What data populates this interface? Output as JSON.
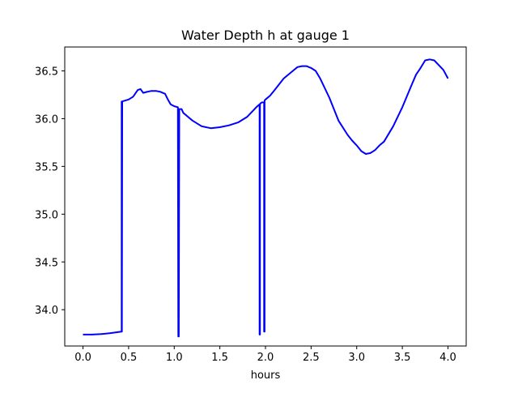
{
  "chart_data": {
    "type": "line",
    "title": "Water Depth h at gauge 1",
    "xlabel": "hours",
    "ylabel": "",
    "xlim": [
      -0.2,
      4.2
    ],
    "ylim": [
      33.62,
      36.75
    ],
    "xticks": [
      0.0,
      0.5,
      1.0,
      1.5,
      2.0,
      2.5,
      3.0,
      3.5,
      4.0
    ],
    "xtick_labels": [
      "0.0",
      "0.5",
      "1.0",
      "1.5",
      "2.0",
      "2.5",
      "3.0",
      "3.5",
      "4.0"
    ],
    "yticks": [
      34.0,
      34.5,
      35.0,
      35.5,
      36.0,
      36.5
    ],
    "ytick_labels": [
      "34.0",
      "34.5",
      "35.0",
      "35.5",
      "36.0",
      "36.5"
    ],
    "grid": false,
    "series": [
      {
        "color": "#0000ff",
        "x": [
          0.0,
          0.1,
          0.2,
          0.3,
          0.42,
          0.424,
          0.424,
          0.426,
          0.426,
          0.43,
          0.5,
          0.55,
          0.6,
          0.63,
          0.66,
          0.7,
          0.75,
          0.8,
          0.85,
          0.9,
          0.93,
          0.96,
          1.0,
          1.04,
          1.045,
          1.045,
          1.05,
          1.05,
          1.055,
          1.08,
          1.1,
          1.15,
          1.2,
          1.3,
          1.4,
          1.5,
          1.6,
          1.7,
          1.8,
          1.9,
          1.935,
          1.935,
          1.94,
          1.94,
          1.945,
          1.96,
          1.985,
          1.985,
          1.99,
          1.99,
          2.0,
          2.05,
          2.1,
          2.2,
          2.3,
          2.35,
          2.4,
          2.45,
          2.5,
          2.55,
          2.6,
          2.7,
          2.8,
          2.9,
          2.95,
          3.0,
          3.05,
          3.1,
          3.15,
          3.2,
          3.25,
          3.3,
          3.4,
          3.5,
          3.6,
          3.65,
          3.7,
          3.75,
          3.8,
          3.85,
          3.9,
          3.95,
          4.0
        ],
        "y": [
          33.74,
          33.74,
          33.745,
          33.755,
          33.77,
          33.77,
          36.18,
          36.18,
          33.77,
          36.18,
          36.2,
          36.23,
          36.3,
          36.31,
          36.27,
          36.28,
          36.29,
          36.29,
          36.28,
          36.26,
          36.2,
          36.15,
          36.13,
          36.12,
          33.72,
          33.72,
          36.1,
          33.72,
          36.1,
          36.1,
          36.06,
          36.02,
          35.98,
          35.92,
          35.9,
          35.91,
          35.93,
          35.96,
          36.02,
          36.12,
          36.15,
          33.74,
          33.74,
          36.15,
          36.16,
          36.17,
          36.17,
          33.77,
          33.77,
          36.19,
          36.2,
          36.24,
          36.3,
          36.42,
          36.5,
          36.54,
          36.55,
          36.55,
          36.53,
          36.5,
          36.42,
          36.22,
          35.98,
          35.83,
          35.77,
          35.72,
          35.66,
          35.63,
          35.64,
          35.67,
          35.72,
          35.76,
          35.92,
          36.12,
          36.35,
          36.46,
          36.53,
          36.61,
          36.62,
          36.61,
          36.56,
          36.51,
          36.42
        ]
      }
    ]
  }
}
